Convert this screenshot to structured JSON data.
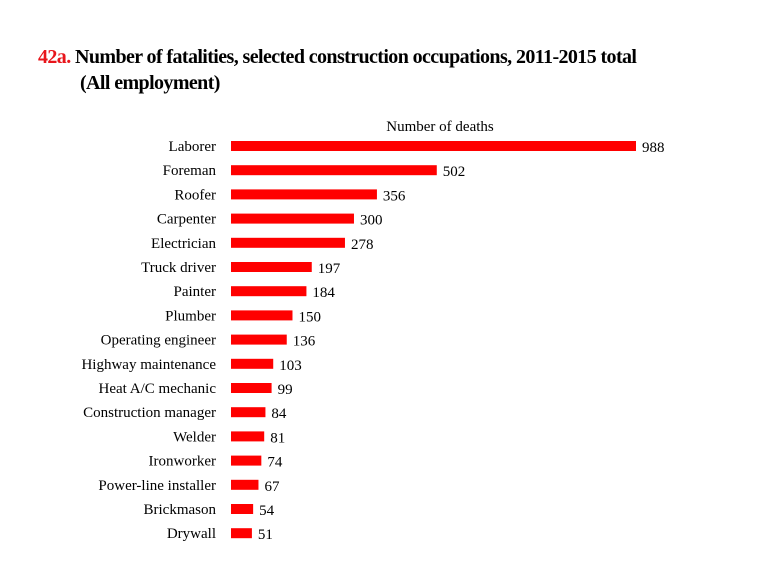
{
  "chart_data": {
    "type": "bar",
    "orientation": "horizontal",
    "title_number": "42a.",
    "title_line1": "Number of fatalities, selected construction occupations, 2011-2015 total",
    "title_line2": "(All employment)",
    "xlabel": "Number of deaths",
    "categories": [
      "Laborer",
      "Foreman",
      "Roofer",
      "Carpenter",
      "Electrician",
      "Truck driver",
      "Painter",
      "Plumber",
      "Operating engineer",
      "Highway maintenance",
      "Heat A/C mechanic",
      "Construction manager",
      "Welder",
      "Ironworker",
      "Power-line installer",
      "Brickmason",
      "Drywall"
    ],
    "values": [
      988,
      502,
      356,
      300,
      278,
      197,
      184,
      150,
      136,
      103,
      99,
      84,
      81,
      74,
      67,
      54,
      51
    ],
    "bar_color": "#ff0000",
    "title_number_color": "#e8151b",
    "grid": false,
    "data_labels": true
  }
}
